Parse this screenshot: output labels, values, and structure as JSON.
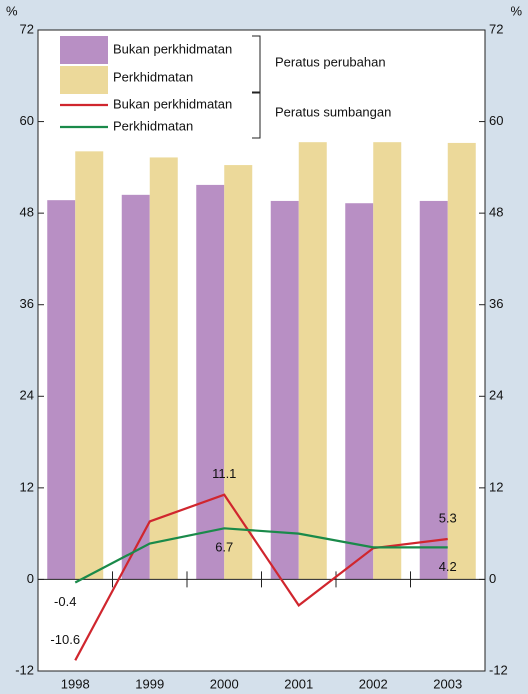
{
  "chart_data": {
    "type": "bar-line",
    "y_unit": "%",
    "y2_unit": "%",
    "categories": [
      "1998",
      "1999",
      "2000",
      "2001",
      "2002",
      "2003"
    ],
    "series": [
      {
        "name": "Bukan perkhidmatan",
        "type": "bar",
        "color": "#b88fc4",
        "values": [
          49.7,
          50.4,
          51.7,
          49.6,
          49.3,
          49.6
        ]
      },
      {
        "name": "Perkhidmatan",
        "type": "bar",
        "color": "#ecd99a",
        "values": [
          56.1,
          55.3,
          54.3,
          57.3,
          57.3,
          57.2
        ]
      },
      {
        "name": "Bukan perkhidmatan",
        "type": "line",
        "color": "#d0262e",
        "values": [
          -10.6,
          7.6,
          11.1,
          -3.4,
          4.1,
          5.3
        ],
        "labeled_points": [
          0,
          2,
          5
        ]
      },
      {
        "name": "Perkhidmatan",
        "type": "line",
        "color": "#1a8a4a",
        "values": [
          -0.4,
          4.7,
          6.7,
          6.0,
          4.2,
          4.2
        ],
        "labeled_points": [
          0,
          2,
          5
        ]
      }
    ],
    "legend_groups": [
      {
        "label": "Peratus perubahan"
      },
      {
        "label": "Peratus sumbangan"
      }
    ],
    "ylim": [
      -12,
      72
    ],
    "yticks": [
      -12,
      0,
      12,
      24,
      36,
      48,
      60,
      72
    ],
    "y2lim": [
      -12,
      72
    ],
    "y2ticks": [
      -12,
      0,
      12,
      24,
      36,
      48,
      60,
      72
    ]
  }
}
